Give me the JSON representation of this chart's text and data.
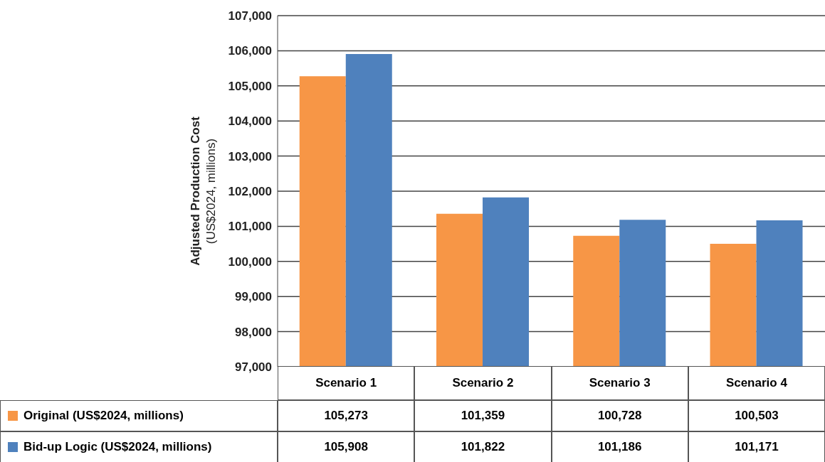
{
  "chart_data": {
    "type": "bar",
    "ylabel": "Adjusted Production Cost\n(US$2024, millions)",
    "categories": [
      "Scenario 1",
      "Scenario 2",
      "Scenario 3",
      "Scenario 4"
    ],
    "series": [
      {
        "name": "Original (US$2024, millions)",
        "color": "#f79646",
        "values": [
          105273,
          101359,
          100728,
          100503
        ],
        "value_labels": [
          "105,273",
          "101,359",
          "100,728",
          "100,503"
        ]
      },
      {
        "name": "Bid-up Logic (US$2024, millions)",
        "color": "#4f81bd",
        "values": [
          105908,
          101822,
          101186,
          101171
        ],
        "value_labels": [
          "105,908",
          "101,822",
          "101,186",
          "101,171"
        ]
      }
    ],
    "ylim": [
      97000,
      107000
    ],
    "yticks": [
      {
        "value": 97000,
        "label": "97,000"
      },
      {
        "value": 98000,
        "label": "98,000"
      },
      {
        "value": 99000,
        "label": "99,000"
      },
      {
        "value": 100000,
        "label": "100,000"
      },
      {
        "value": 101000,
        "label": "101,000"
      },
      {
        "value": 102000,
        "label": "102,000"
      },
      {
        "value": 103000,
        "label": "103,000"
      },
      {
        "value": 104000,
        "label": "104,000"
      },
      {
        "value": 105000,
        "label": "105,000"
      },
      {
        "value": 106000,
        "label": "106,000"
      },
      {
        "value": 107000,
        "label": "107,000"
      }
    ],
    "grid": "y",
    "legend": "bottom"
  }
}
